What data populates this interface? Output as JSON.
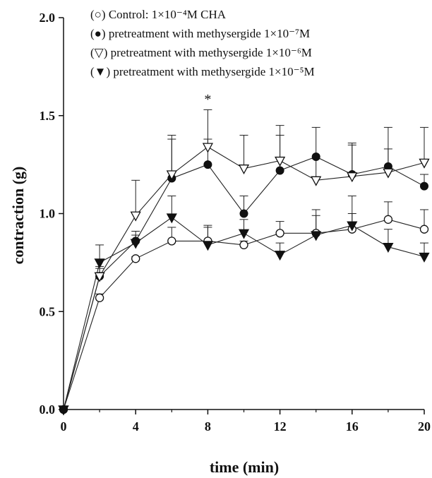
{
  "chart_data": {
    "type": "line",
    "xlabel": "time (min)",
    "ylabel": "contraction (g)",
    "xlim": [
      0,
      20
    ],
    "ylim": [
      0,
      2.0
    ],
    "xticks": [
      "0",
      "4",
      "8",
      "12",
      "16",
      "20"
    ],
    "yticks": [
      "0.0",
      "0.5",
      "1.0",
      "1.5",
      "2.0"
    ],
    "grid": false,
    "legend_position": "top",
    "annotations": [
      {
        "text": "*",
        "x": 8,
        "y": 1.56
      }
    ],
    "series": [
      {
        "legend_text": "(○) Control:  1×10⁻⁴M CHA",
        "marker": "open-circle",
        "x": [
          0,
          2,
          4,
          6,
          8,
          10,
          12,
          14,
          16,
          18,
          20
        ],
        "y": [
          0,
          0.57,
          0.77,
          0.86,
          0.86,
          0.84,
          0.9,
          0.9,
          0.92,
          0.97,
          0.92
        ],
        "err": [
          0,
          0.02,
          0.01,
          0.07,
          0.07,
          0.02,
          0.06,
          0.12,
          0.08,
          0.09,
          0.1
        ]
      },
      {
        "legend_text": "(●) pretreatment with methysergide 1×10⁻⁷M",
        "marker": "filled-circle",
        "x": [
          0,
          2,
          4,
          6,
          8,
          10,
          12,
          14,
          16,
          18,
          20
        ],
        "y": [
          0,
          0.68,
          0.86,
          1.18,
          1.25,
          1.0,
          1.22,
          1.29,
          1.2,
          1.24,
          1.14
        ],
        "err": [
          0,
          0.04,
          0.03,
          0.2,
          0.13,
          0.09,
          0.23,
          0.15,
          0.15,
          0.2,
          0.06
        ]
      },
      {
        "legend_text": "(▽) pretreatment with methysergide 1×10⁻⁶M",
        "marker": "open-triangle-down",
        "x": [
          0,
          2,
          4,
          6,
          8,
          10,
          12,
          14,
          16,
          18,
          20
        ],
        "y": [
          0,
          0.68,
          0.99,
          1.2,
          1.34,
          1.23,
          1.27,
          1.17,
          1.19,
          1.21,
          1.26
        ],
        "err": [
          0,
          0.05,
          0.18,
          0.2,
          0.19,
          0.17,
          0.13,
          0.11,
          0.17,
          0.12,
          0.18
        ]
      },
      {
        "legend_text": "(▼) pretreatment with methysergide 1×10⁻⁵M",
        "marker": "filled-triangle-down",
        "x": [
          0,
          2,
          4,
          6,
          8,
          10,
          12,
          14,
          16,
          18,
          20
        ],
        "y": [
          0,
          0.75,
          0.85,
          0.98,
          0.84,
          0.9,
          0.79,
          0.89,
          0.94,
          0.83,
          0.78
        ],
        "err": [
          0,
          0.09,
          0.06,
          0.11,
          0.1,
          0.07,
          0.06,
          0.1,
          0.15,
          0.09,
          0.07
        ]
      }
    ]
  }
}
